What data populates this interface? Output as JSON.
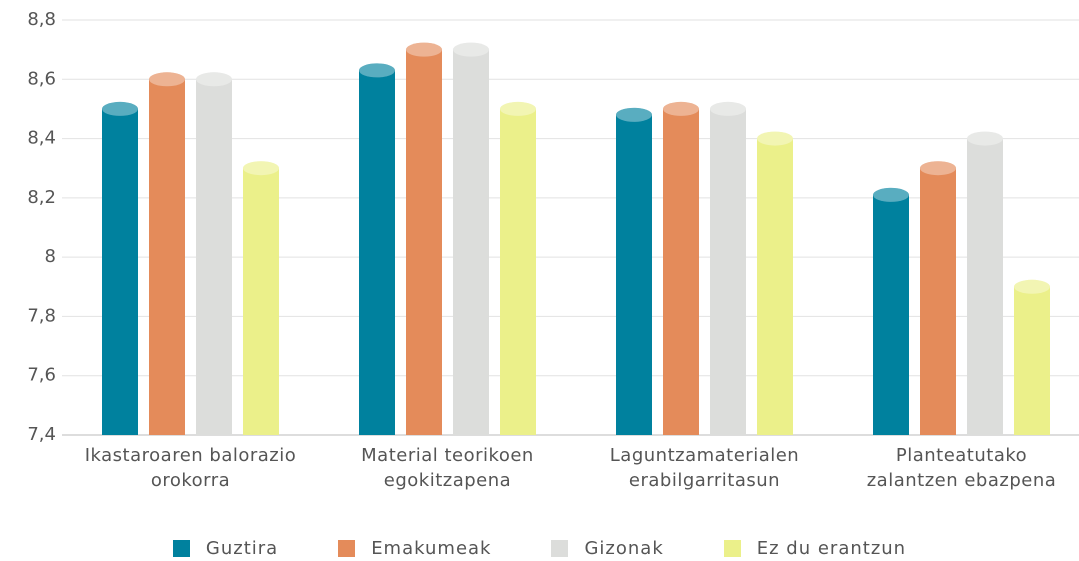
{
  "chart_data": {
    "type": "bar",
    "categories": [
      "Ikastaroaren balorazio\norokorra",
      "Material teorikoen\negokitzapena",
      "Laguntzamaterialen\nerabilgarritasun",
      "Planteatutako\nzalantzen ebazpena"
    ],
    "series": [
      {
        "name": "Guztira",
        "color": "#00819e",
        "values": [
          8.5,
          8.63,
          8.48,
          8.21
        ]
      },
      {
        "name": "Emakumeak",
        "color": "#e48b5a",
        "values": [
          8.6,
          8.7,
          8.5,
          8.3
        ]
      },
      {
        "name": "Gizonak",
        "color": "#dcdddb",
        "values": [
          8.6,
          8.7,
          8.5,
          8.4
        ]
      },
      {
        "name": "Ez du erantzun",
        "color": "#ebf08a",
        "values": [
          8.3,
          8.5,
          8.4,
          7.9
        ]
      }
    ],
    "ylim": [
      7.4,
      8.8
    ],
    "yticks": [
      {
        "value": 7.4,
        "label": "7,4"
      },
      {
        "value": 7.6,
        "label": "7,6"
      },
      {
        "value": 7.8,
        "label": "7,8"
      },
      8,
      {
        "value": 8.2,
        "label": "8,2"
      },
      {
        "value": 8.4,
        "label": "8,4"
      },
      {
        "value": 8.6,
        "label": "8,6"
      },
      {
        "value": 8.8,
        "label": "8,8"
      }
    ],
    "grid": true,
    "legend": "bottom"
  }
}
